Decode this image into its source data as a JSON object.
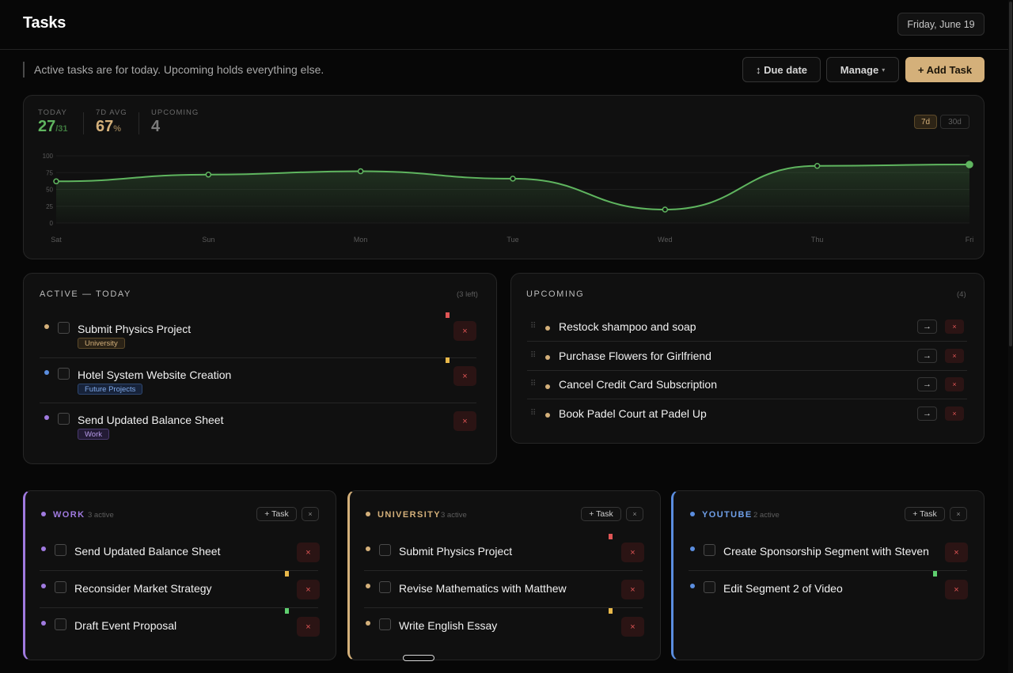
{
  "header": {
    "title": "Tasks",
    "date": "Friday, June 19"
  },
  "subheader": {
    "text": "Active tasks are for today. Upcoming holds everything else."
  },
  "toolbar": {
    "sort_label": "↕ Due date",
    "manage_label": "Manage",
    "manage_caret": "▾",
    "add_label": "+ Add Task"
  },
  "stats": {
    "today": {
      "label": "TODAY",
      "value": "27",
      "suffix": "/31"
    },
    "avg": {
      "label": "7D AVG",
      "value": "67",
      "suffix": "%"
    },
    "upcoming": {
      "label": "UPCOMING",
      "value": "4"
    },
    "ranges": [
      "7d",
      "30d"
    ],
    "active_range": "7d"
  },
  "chart_data": {
    "type": "area",
    "x": [
      "Sat",
      "Sun",
      "Mon",
      "Tue",
      "Wed",
      "Thu",
      "Fri"
    ],
    "series": [
      {
        "values": [
          62,
          72,
          77,
          66,
          20,
          85,
          87
        ]
      }
    ],
    "ylim": [
      0,
      100
    ],
    "yticks": [
      0,
      25,
      50,
      75,
      100
    ],
    "grid": true,
    "color": "#5fb55f"
  },
  "active": {
    "title": "ACTIVE — TODAY",
    "count": "(3 left)",
    "items": [
      {
        "text": "Submit Physics Project",
        "tag": "University",
        "dot": "#d4b07a",
        "flag": "#e05555"
      },
      {
        "text": "Hotel System Website Creation",
        "tag": "Future Projects",
        "dot": "#5b8ee0",
        "flag": "#e8b84a"
      },
      {
        "text": "Send Updated Balance Sheet",
        "tag": "Work",
        "dot": "#a07ae0",
        "flag": ""
      }
    ],
    "delete_glyph": "×"
  },
  "upcoming": {
    "title": "UPCOMING",
    "count": "(4)",
    "items": [
      {
        "text": "Restock shampoo and soap"
      },
      {
        "text": "Purchase Flowers for Girlfriend"
      },
      {
        "text": "Cancel Credit Card Subscription"
      },
      {
        "text": "Book Padel Court at Padel Up"
      }
    ],
    "move_glyph": "→",
    "delete_glyph": "×",
    "handle_glyph": "⠿"
  },
  "categories": [
    {
      "name": "WORK",
      "count": "3 active",
      "color": "#a07ae0",
      "add_label": "+ Task",
      "close_glyph": "×",
      "items": [
        {
          "text": "Send Updated Balance Sheet",
          "flag": ""
        },
        {
          "text": "Reconsider Market Strategy",
          "flag": "#e8b84a"
        },
        {
          "text": "Draft Event Proposal",
          "flag": "#5fcf6f"
        }
      ]
    },
    {
      "name": "UNIVERSITY",
      "count": "3 active",
      "color": "#d4b07a",
      "add_label": "+ Task",
      "close_glyph": "×",
      "items": [
        {
          "text": "Submit Physics Project",
          "flag": "#e05555"
        },
        {
          "text": "Revise Mathematics with Matthew",
          "flag": ""
        },
        {
          "text": "Write English Essay",
          "flag": "#e8b84a"
        }
      ]
    },
    {
      "name": "YOUTUBE",
      "count": "2 active",
      "color": "#5b8ee0",
      "add_label": "+ Task",
      "close_glyph": "×",
      "items": [
        {
          "text": "Create Sponsorship Segment with Steven",
          "flag": ""
        },
        {
          "text": "Edit Segment 2 of Video",
          "flag": "#5fcf6f"
        }
      ]
    }
  ]
}
